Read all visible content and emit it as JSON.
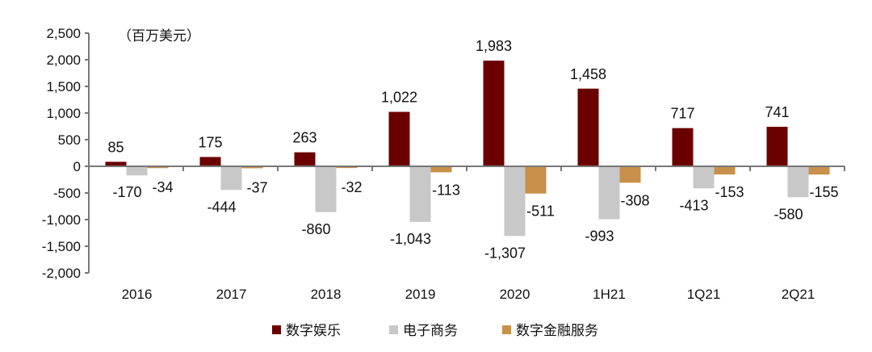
{
  "chart_data": {
    "type": "bar",
    "unit_note": "（百万美元）",
    "categories": [
      "2016",
      "2017",
      "2018",
      "2019",
      "2020",
      "1H21",
      "1Q21",
      "2Q21"
    ],
    "series": [
      {
        "name": "数字娱乐",
        "color": "#6b0000",
        "values": [
          85,
          175,
          263,
          1022,
          1983,
          1458,
          717,
          741
        ],
        "labels": [
          "85",
          "175",
          "263",
          "1,022",
          "1,983",
          "1,458",
          "717",
          "741"
        ]
      },
      {
        "name": "电子商务",
        "color": "#c8c8c8",
        "values": [
          -170,
          -444,
          -860,
          -1043,
          -1307,
          -993,
          -413,
          -580
        ],
        "labels": [
          "-170",
          "-444",
          "-860",
          "-1,043",
          "-1,307",
          "-993",
          "-413",
          "-580"
        ]
      },
      {
        "name": "数字金融服务",
        "color": "#c8904a",
        "values": [
          -34,
          -37,
          -32,
          -113,
          -511,
          -308,
          -153,
          -155
        ],
        "labels": [
          "-34",
          "-37",
          "-32",
          "-113",
          "-511",
          "-308",
          "-153",
          "-155"
        ]
      }
    ],
    "ylim": [
      -2000,
      2500
    ],
    "yticks": [
      2500,
      2000,
      1500,
      1000,
      500,
      0,
      -500,
      -1000,
      -1500,
      -2000
    ],
    "ytick_labels": [
      "2,500",
      "2,000",
      "1,500",
      "1,000",
      "500",
      "0",
      "-500",
      "-1,000",
      "-1,500",
      "-2,000"
    ],
    "grid": false,
    "legend_position": "bottom"
  }
}
